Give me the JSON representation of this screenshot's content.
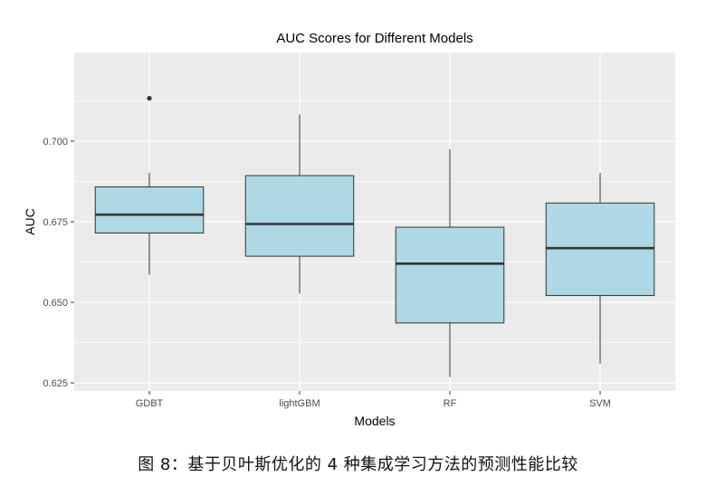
{
  "caption": "图 8：基于贝叶斯优化的 4 种集成学习方法的预测性能比较",
  "chart_data": {
    "type": "boxplot",
    "title": "AUC Scores for Different Models",
    "xlabel": "Models",
    "ylabel": "AUC",
    "ylim": [
      0.6225,
      0.7275
    ],
    "yticks": [
      0.625,
      0.65,
      0.675,
      0.7
    ],
    "ytick_labels": [
      "0.625",
      "0.650",
      "0.675",
      "0.700"
    ],
    "categories": [
      "GDBT",
      "lightGBM",
      "RF",
      "SVM"
    ],
    "boxes": [
      {
        "category": "GDBT",
        "whisker_low": 0.6585,
        "q1": 0.6715,
        "median": 0.6772,
        "q3": 0.6858,
        "whisker_high": 0.6902,
        "outliers": [
          0.7133
        ]
      },
      {
        "category": "lightGBM",
        "whisker_low": 0.6527,
        "q1": 0.6643,
        "median": 0.6743,
        "q3": 0.6893,
        "whisker_high": 0.7083,
        "outliers": []
      },
      {
        "category": "RF",
        "whisker_low": 0.6268,
        "q1": 0.6436,
        "median": 0.662,
        "q3": 0.6733,
        "whisker_high": 0.6975,
        "outliers": []
      },
      {
        "category": "SVM",
        "whisker_low": 0.631,
        "q1": 0.6521,
        "median": 0.6668,
        "q3": 0.6808,
        "whisker_high": 0.6902,
        "outliers": []
      }
    ],
    "colors": {
      "box_fill": "#add8e6",
      "panel": "#ebebeb",
      "grid": "#ffffff",
      "line": "#333333"
    },
    "grid": true,
    "legend": "none"
  }
}
